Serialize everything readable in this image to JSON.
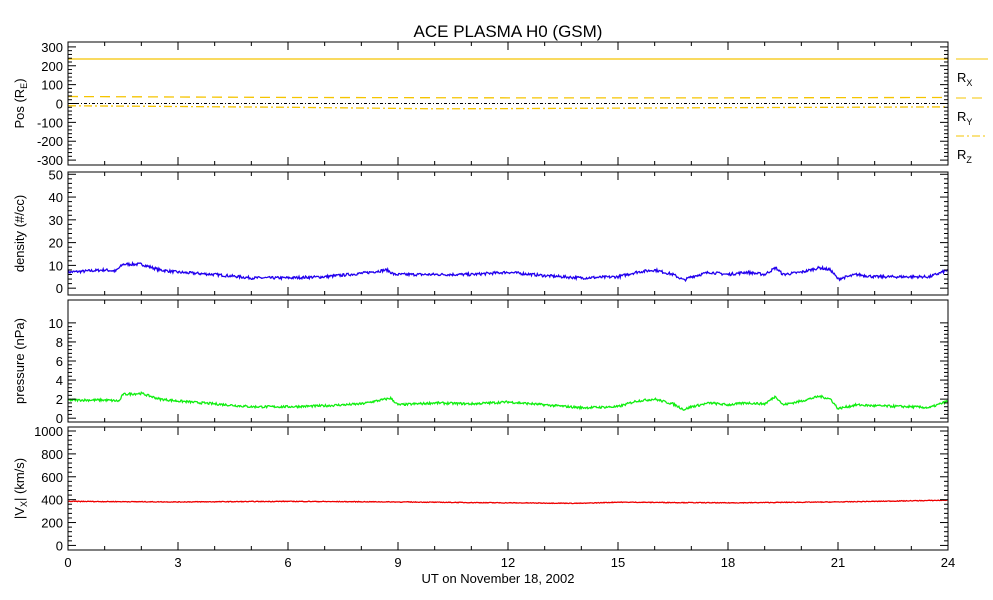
{
  "chart_data": {
    "type": "line",
    "title": "ACE PLASMA H0 (GSM)",
    "xlabel": "UT on November 18, 2002",
    "xlim": [
      0,
      24
    ],
    "xticks": [
      0,
      3,
      6,
      9,
      12,
      15,
      18,
      21,
      24
    ],
    "panels": [
      {
        "ylabel": "Pos (R",
        "ylabel_sub": "E",
        "ylabel_end": ")",
        "ylim": [
          -326,
          326
        ],
        "yticks": [
          -300,
          -200,
          -100,
          0,
          100,
          200,
          300
        ],
        "zero_line": true,
        "series": [
          {
            "name": "R",
            "sub": "X",
            "color": "#f5c400",
            "dash": "",
            "x": [
              0,
              24
            ],
            "y": [
              236,
              236
            ]
          },
          {
            "name": "R",
            "sub": "Y",
            "color": "#f5c400",
            "dash": "10,6",
            "x": [
              0,
              6,
              12,
              18,
              24
            ],
            "y": [
              37,
              32,
              30,
              30,
              32
            ]
          },
          {
            "name": "R",
            "sub": "Z",
            "color": "#f5c400",
            "dash": "8,3,2,3",
            "x": [
              0,
              6,
              10,
              12,
              18,
              24
            ],
            "y": [
              -12,
              -20,
              -28,
              -27,
              -22,
              -18
            ]
          }
        ]
      },
      {
        "ylabel": "density (#/cc)",
        "ylim": [
          -3,
          51
        ],
        "yticks": [
          0,
          10,
          20,
          30,
          40,
          50
        ],
        "series": [
          {
            "name": "density",
            "color": "#2200ee",
            "noise": 0.6,
            "x": [
              0,
              0.5,
              1,
              1.3,
              1.5,
              2,
              2.5,
              3,
              4,
              5,
              6,
              7,
              8,
              8.7,
              8.9,
              9,
              10,
              11,
              12,
              13,
              14,
              15,
              15.5,
              16,
              16.5,
              16.8,
              17,
              17.5,
              18,
              18.5,
              19,
              19.3,
              19.5,
              20,
              20.5,
              20.8,
              21,
              21.5,
              22,
              23,
              23.5,
              24
            ],
            "y": [
              7,
              7.5,
              8,
              7.5,
              10.5,
              10.5,
              8,
              7,
              6,
              4.5,
              4.5,
              5,
              6.5,
              8,
              6,
              6,
              6,
              6,
              7,
              5.5,
              4.5,
              5,
              7,
              8,
              6,
              3.5,
              5,
              7,
              6,
              7,
              6,
              9,
              6,
              7,
              9,
              8,
              4,
              6,
              5,
              5,
              5,
              8
            ]
          }
        ]
      },
      {
        "ylabel": "pressure (nPa)",
        "ylim": [
          -0.4,
          12.4
        ],
        "yticks": [
          0,
          2,
          4,
          6,
          8,
          10
        ],
        "series": [
          {
            "name": "pressure",
            "color": "#11ee11",
            "noise": 0.12,
            "x": [
              0,
              1,
              1.4,
              1.5,
              2,
              2.5,
              3,
              4,
              5,
              6,
              7,
              8,
              8.8,
              9,
              10,
              11,
              12,
              13,
              14,
              15,
              15.5,
              16,
              16.5,
              16.8,
              17,
              17.5,
              18,
              18.5,
              19,
              19.3,
              19.5,
              20,
              20.5,
              20.8,
              21,
              21.5,
              22,
              23,
              23.5,
              24
            ],
            "y": [
              1.9,
              1.9,
              1.8,
              2.5,
              2.6,
              2.0,
              1.8,
              1.5,
              1.2,
              1.2,
              1.3,
              1.5,
              2.1,
              1.4,
              1.6,
              1.5,
              1.7,
              1.4,
              1.1,
              1.2,
              1.8,
              2.0,
              1.5,
              0.9,
              1.2,
              1.6,
              1.4,
              1.6,
              1.5,
              2.3,
              1.4,
              1.8,
              2.3,
              2.0,
              1.0,
              1.4,
              1.3,
              1.2,
              1.1,
              1.8
            ]
          }
        ]
      },
      {
        "ylabel": "|V",
        "ylabel_sub": "X",
        "ylabel_end": "| (km/s)",
        "ylim": [
          -40,
          1035
        ],
        "yticks": [
          0,
          200,
          400,
          600,
          800,
          1000
        ],
        "series": [
          {
            "name": "Vx",
            "color": "#ee0000",
            "noise": 3,
            "x": [
              0,
              3,
              6,
              9,
              12,
              14,
              15,
              18,
              21,
              24
            ],
            "y": [
              385,
              380,
              385,
              380,
              372,
              368,
              378,
              372,
              380,
              395
            ]
          }
        ]
      }
    ]
  }
}
